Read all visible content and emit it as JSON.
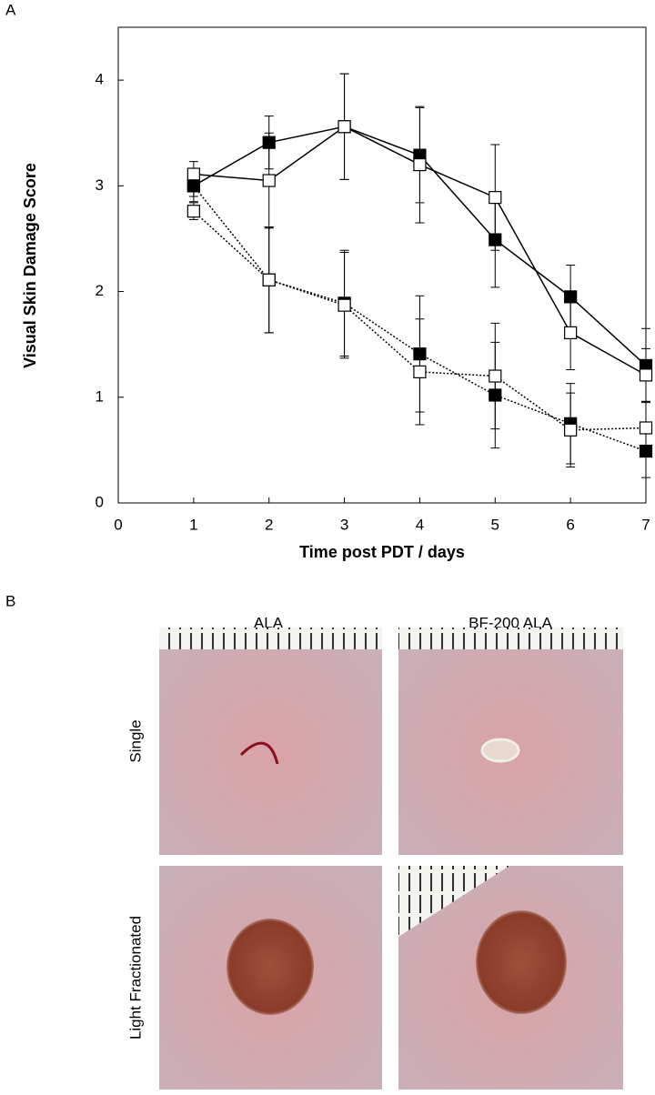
{
  "chart_data": {
    "type": "line",
    "panel_label": "A",
    "xlabel": "Time post PDT / days",
    "ylabel": "Visual Skin Damage Score",
    "x": [
      1,
      2,
      3,
      4,
      5,
      6,
      7
    ],
    "xlim": [
      0,
      7
    ],
    "xticks": [
      0,
      1,
      2,
      3,
      4,
      5,
      6,
      7
    ],
    "ylim": [
      0,
      4.5
    ],
    "yticks": [
      0,
      1,
      2,
      3,
      4
    ],
    "grid": false,
    "series": [
      {
        "color": "#000000",
        "marker_fill": "#000000",
        "line_style": "solid",
        "values": [
          3.0,
          3.41,
          3.56,
          3.29,
          2.49,
          1.95,
          1.3
        ],
        "errors": [
          0.15,
          0.25,
          0.5,
          0.45,
          0.45,
          0.3,
          0.35
        ]
      },
      {
        "color": "#000000",
        "marker_fill": "#ffffff",
        "line_style": "solid",
        "values": [
          3.11,
          3.05,
          3.56,
          3.2,
          2.89,
          1.61,
          1.21
        ],
        "errors": [
          0.12,
          0.45,
          0.5,
          0.55,
          0.5,
          0.35,
          0.25
        ]
      },
      {
        "color": "#000000",
        "marker_fill": "#000000",
        "line_style": "dotted",
        "values": [
          3.0,
          2.11,
          1.89,
          1.41,
          1.02,
          0.75,
          0.49
        ],
        "errors": [
          0.1,
          0.5,
          0.5,
          0.55,
          0.5,
          0.38,
          0.25
        ]
      },
      {
        "color": "#000000",
        "marker_fill": "#ffffff",
        "line_style": "dotted",
        "values": [
          2.76,
          2.11,
          1.87,
          1.24,
          1.2,
          0.69,
          0.71
        ],
        "errors": [
          0.08,
          0.5,
          0.5,
          0.5,
          0.5,
          0.35,
          0.25
        ]
      }
    ]
  },
  "panel_b": {
    "label": "B",
    "columns": [
      "ALA",
      "BF-200 ALA"
    ],
    "rows": [
      "Single",
      "Light Fractionated"
    ]
  }
}
